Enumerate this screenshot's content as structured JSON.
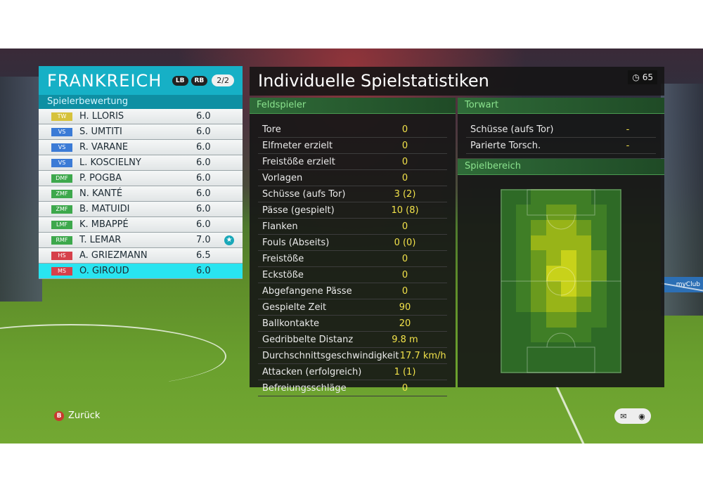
{
  "team": {
    "name": "FRANKREICH",
    "lb_label": "LB",
    "rb_label": "RB",
    "page": "2/2",
    "subheader": "Spielerbewertung",
    "players": [
      {
        "pos": "TW",
        "name": "H. LLORIS",
        "rating": "6.0",
        "pos_color": "#d6c23b"
      },
      {
        "pos": "VS",
        "name": "S. UMTITI",
        "rating": "6.0",
        "pos_color": "#3b7bd6"
      },
      {
        "pos": "VS",
        "name": "R. VARANE",
        "rating": "6.0",
        "pos_color": "#3b7bd6"
      },
      {
        "pos": "VS",
        "name": "L. KOSCIELNY",
        "rating": "6.0",
        "pos_color": "#3b7bd6"
      },
      {
        "pos": "DMF",
        "name": "P. POGBA",
        "rating": "6.0",
        "pos_color": "#3da84c"
      },
      {
        "pos": "ZMF",
        "name": "N. KANTÉ",
        "rating": "6.0",
        "pos_color": "#3da84c"
      },
      {
        "pos": "ZMF",
        "name": "B. MATUIDI",
        "rating": "6.0",
        "pos_color": "#3da84c"
      },
      {
        "pos": "LMF",
        "name": "K. MBAPPÉ",
        "rating": "6.0",
        "pos_color": "#3da84c"
      },
      {
        "pos": "RMF",
        "name": "T. LEMAR",
        "rating": "7.0",
        "pos_color": "#3da84c",
        "star": true
      },
      {
        "pos": "HS",
        "name": "A. GRIEZMANN",
        "rating": "6.5",
        "pos_color": "#d6404a"
      },
      {
        "pos": "MS",
        "name": "O. GIROUD",
        "rating": "6.0",
        "pos_color": "#d6404a",
        "selected": true
      }
    ]
  },
  "stats": {
    "title": "Individuelle Spielstatistiken",
    "timer": "65",
    "field_header": "Feldspieler",
    "field_rows": [
      {
        "label": "Tore",
        "value": "0"
      },
      {
        "label": "Elfmeter erzielt",
        "value": "0"
      },
      {
        "label": "Freistöße erzielt",
        "value": "0"
      },
      {
        "label": "Vorlagen",
        "value": "0"
      },
      {
        "label": "Schüsse (aufs Tor)",
        "value": "3 (2)"
      },
      {
        "label": "Pässe (gespielt)",
        "value": "10 (8)"
      },
      {
        "label": "Flanken",
        "value": "0"
      },
      {
        "label": "Fouls (Abseits)",
        "value": "0 (0)"
      },
      {
        "label": "Freistöße",
        "value": "0"
      },
      {
        "label": "Eckstöße",
        "value": "0"
      },
      {
        "label": "Abgefangene Pässe",
        "value": "0"
      },
      {
        "label": "Gespielte Zeit",
        "value": "90"
      },
      {
        "label": "Ballkontakte",
        "value": "20"
      },
      {
        "label": "Gedribbelte Distanz",
        "value": "9.8 m"
      },
      {
        "label": "Durchschnittsgeschwindigkeit",
        "value": "17.7 km/h"
      },
      {
        "label": "Attacken (erfolgreich)",
        "value": "1 (1)"
      },
      {
        "label": "Befreiungsschläge",
        "value": "0"
      }
    ],
    "gk_header": "Torwart",
    "gk_rows": [
      {
        "label": "Schüsse (aufs Tor)",
        "value": "-"
      },
      {
        "label": "Parierte Torsch.",
        "value": "-"
      }
    ],
    "area_header": "Spielbereich"
  },
  "heatmap": {
    "rows": 12,
    "cols": 8,
    "levels": [
      [
        0,
        0,
        1,
        1,
        1,
        1,
        0,
        0
      ],
      [
        0,
        1,
        1,
        2,
        2,
        1,
        1,
        0
      ],
      [
        0,
        1,
        2,
        3,
        3,
        2,
        1,
        0
      ],
      [
        0,
        1,
        3,
        3,
        3,
        3,
        1,
        0
      ],
      [
        0,
        1,
        2,
        3,
        4,
        3,
        2,
        0
      ],
      [
        0,
        1,
        2,
        4,
        4,
        3,
        2,
        0
      ],
      [
        0,
        1,
        2,
        3,
        4,
        3,
        1,
        0
      ],
      [
        0,
        1,
        2,
        3,
        3,
        2,
        1,
        0
      ],
      [
        0,
        0,
        1,
        2,
        2,
        1,
        1,
        0
      ],
      [
        0,
        0,
        1,
        1,
        1,
        1,
        0,
        0
      ],
      [
        0,
        0,
        0,
        0,
        0,
        0,
        0,
        0
      ],
      [
        0,
        0,
        0,
        0,
        0,
        0,
        0,
        0
      ]
    ],
    "colors": [
      "#2e6a26",
      "#3f7e26",
      "#6a9a1e",
      "#98b418",
      "#c8d21a"
    ]
  },
  "footer": {
    "back_label": "Zurück",
    "back_key": "B",
    "corner_icons": [
      "chat-icon",
      "rs-icon"
    ]
  }
}
